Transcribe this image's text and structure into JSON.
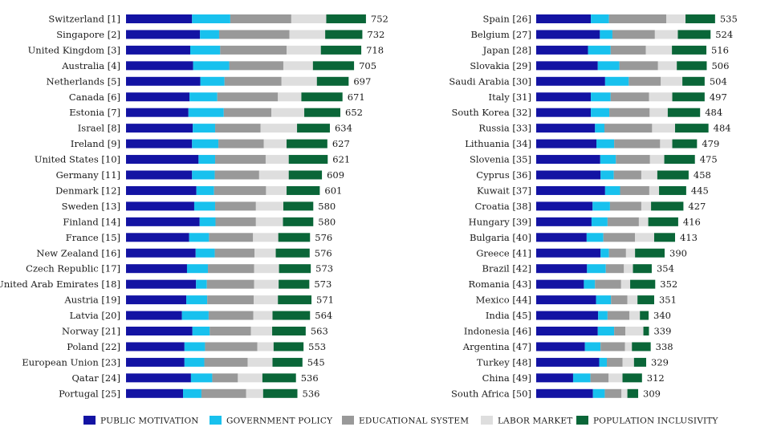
{
  "chart_data": {
    "type": "bar",
    "orientation": "horizontal",
    "stacked": true,
    "legend": {
      "placement": "bottom",
      "entries": [
        {
          "name": "PUBLIC MOTIVATION",
          "color": "#1313a3"
        },
        {
          "name": "GOVERNMENT POLICY",
          "color": "#18c1ee"
        },
        {
          "name": "EDUCATIONAL SYSTEM",
          "color": "#999999"
        },
        {
          "name": "LABOR MARKET",
          "color": "#dedede"
        },
        {
          "name": "POPULATION INCLUSIVITY",
          "color": "#0a6638"
        }
      ]
    },
    "panels": [
      {
        "rows": [
          {
            "label": "Switzerland [1]",
            "total": "752",
            "segments": [
              183,
              106,
              169,
              97,
              110
            ]
          },
          {
            "label": "Singapore [2]",
            "total": "732",
            "segments": [
              205,
              53,
              195,
              99,
              103
            ]
          },
          {
            "label": "United Kingdom [3]",
            "total": "718",
            "segments": [
              178,
              83,
              184,
              95,
              112
            ]
          },
          {
            "label": "Australia [4]",
            "total": "705",
            "segments": [
              186,
              100,
              150,
              82,
              114
            ]
          },
          {
            "label": "Netherlands [5]",
            "total": "697",
            "segments": [
              206,
              67,
              158,
              98,
              88
            ]
          },
          {
            "label": "Canada [6]",
            "total": "671",
            "segments": [
              176,
              77,
              168,
              65,
              114
            ]
          },
          {
            "label": "Estonia [7]",
            "total": "652",
            "segments": [
              173,
              98,
              132,
              91,
              100
            ]
          },
          {
            "label": "Israel [8]",
            "total": "634",
            "segments": [
              185,
              62,
              126,
              101,
              91
            ]
          },
          {
            "label": "Ireland [9]",
            "total": "627",
            "segments": [
              183,
              73,
              126,
              63,
              113
            ]
          },
          {
            "label": "United States [10]",
            "total": "621",
            "segments": [
              201,
              46,
              140,
              64,
              108
            ]
          },
          {
            "label": "Germany [11]",
            "total": "609",
            "segments": [
              183,
              63,
              123,
              82,
              92
            ]
          },
          {
            "label": "Denmark [12]",
            "total": "601",
            "segments": [
              195,
              49,
              144,
              57,
              92
            ]
          },
          {
            "label": "Sweden [13]",
            "total": "580",
            "segments": [
              189,
              58,
              113,
              76,
              83
            ]
          },
          {
            "label": "Finland [14]",
            "total": "580",
            "segments": [
              204,
              44,
              112,
              75,
              84
            ]
          },
          {
            "label": "France [15]",
            "total": "576",
            "segments": [
              175,
              55,
              122,
              70,
              88
            ]
          },
          {
            "label": "New Zealand [16]",
            "total": "576",
            "segments": [
              193,
              53,
              110,
              59,
              94
            ]
          },
          {
            "label": "Czech Republic [17]",
            "total": "573",
            "segments": [
              169,
              58,
              128,
              69,
              88
            ]
          },
          {
            "label": "United Arab Emirates [18]",
            "total": "573",
            "segments": [
              194,
              30,
              131,
              68,
              85
            ]
          },
          {
            "label": "Austria [19]",
            "total": "571",
            "segments": [
              167,
              58,
              129,
              67,
              93
            ]
          },
          {
            "label": "Latvia [20]",
            "total": "564",
            "segments": [
              155,
              74,
              124,
              53,
              104
            ]
          },
          {
            "label": "Norway [21]",
            "total": "563",
            "segments": [
              184,
              48,
              114,
              59,
              93
            ]
          },
          {
            "label": "Poland [22]",
            "total": "553",
            "segments": [
              162,
              57,
              145,
              45,
              83
            ]
          },
          {
            "label": "European Union [23]",
            "total": "545",
            "segments": [
              162,
              55,
              120,
              69,
              83
            ]
          },
          {
            "label": "Qatar [24]",
            "total": "536",
            "segments": [
              180,
              59,
              71,
              68,
              93
            ]
          },
          {
            "label": "Portugal [25]",
            "total": "536",
            "segments": [
              158,
              51,
              124,
              47,
              95
            ]
          }
        ]
      },
      {
        "rows": [
          {
            "label": "Spain [26]",
            "total": "535",
            "segments": [
              157,
              52,
              165,
              55,
              85
            ]
          },
          {
            "label": "Belgium [27]",
            "total": "524",
            "segments": [
              183,
              36,
              122,
              66,
              94
            ]
          },
          {
            "label": "Japan [28]",
            "total": "516",
            "segments": [
              149,
              65,
              101,
              75,
              99
            ]
          },
          {
            "label": "Slovakia [29]",
            "total": "506",
            "segments": [
              177,
              62,
              111,
              54,
              86
            ]
          },
          {
            "label": "Saudi Arabia [30]",
            "total": "504",
            "segments": [
              198,
              68,
              92,
              62,
              64
            ]
          },
          {
            "label": "Italy [31]",
            "total": "497",
            "segments": [
              157,
              57,
              110,
              67,
              93
            ]
          },
          {
            "label": "South Korea [32]",
            "total": "484",
            "segments": [
              157,
              53,
              116,
              52,
              93
            ]
          },
          {
            "label": "Russia [33]",
            "total": "484",
            "segments": [
              169,
              27,
              137,
              66,
              96
            ]
          },
          {
            "label": "Lithuania [34]",
            "total": "479",
            "segments": [
              173,
              51,
              132,
              35,
              71
            ]
          },
          {
            "label": "Slovenia [35]",
            "total": "475",
            "segments": [
              184,
              45,
              98,
              41,
              88
            ]
          },
          {
            "label": "Cyprus [36]",
            "total": "458",
            "segments": [
              185,
              38,
              79,
              46,
              90
            ]
          },
          {
            "label": "Kuwait [37]",
            "total": "445",
            "segments": [
              198,
              43,
              84,
              28,
              78
            ]
          },
          {
            "label": "Croatia [38]",
            "total": "427",
            "segments": [
              162,
              50,
              90,
              28,
              93
            ]
          },
          {
            "label": "Hungary [39]",
            "total": "416",
            "segments": [
              159,
              46,
              90,
              27,
              86
            ]
          },
          {
            "label": "Bulgaria [40]",
            "total": "413",
            "segments": [
              145,
              48,
              91,
              55,
              60
            ]
          },
          {
            "label": "Greece [41]",
            "total": "390",
            "segments": [
              185,
              24,
              49,
              26,
              85
            ]
          },
          {
            "label": "Brazil [42]",
            "total": "354",
            "segments": [
              146,
              54,
              52,
              26,
              54
            ]
          },
          {
            "label": "Romania [43]",
            "total": "352",
            "segments": [
              137,
              32,
              75,
              26,
              72
            ]
          },
          {
            "label": "Mexico [44]",
            "total": "351",
            "segments": [
              172,
              43,
              47,
              29,
              48
            ]
          },
          {
            "label": "India [45]",
            "total": "340",
            "segments": [
              178,
              27,
              63,
              30,
              25
            ]
          },
          {
            "label": "Indonesia [46]",
            "total": "339",
            "segments": [
              177,
              47,
              32,
              52,
              16
            ]
          },
          {
            "label": "Argentina [47]",
            "total": "338",
            "segments": [
              140,
              45,
              70,
              20,
              54
            ]
          },
          {
            "label": "Turkey [48]",
            "total": "329",
            "segments": [
              181,
              22,
              45,
              33,
              35
            ]
          },
          {
            "label": "China [49]",
            "total": "312",
            "segments": [
              106,
              50,
              52,
              40,
              56
            ]
          },
          {
            "label": "South Africa [50]",
            "total": "309",
            "segments": [
              163,
              34,
              48,
              17,
              31
            ]
          }
        ]
      }
    ]
  }
}
